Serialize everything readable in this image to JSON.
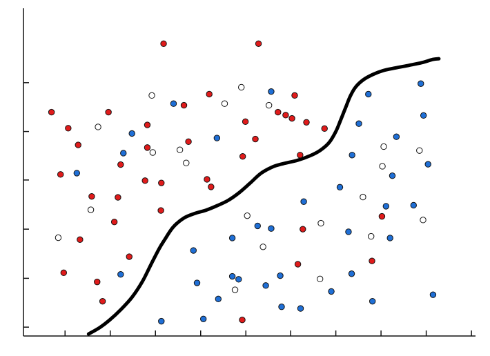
{
  "chart_data": {
    "type": "scatter",
    "title": "",
    "xlabel": "",
    "ylabel": "",
    "xlim": [
      0,
      100
    ],
    "ylim": [
      0,
      100
    ],
    "grid": false,
    "colors": {
      "red": "#e01b1b",
      "blue": "#1f6fd6",
      "open": "#ffffff",
      "outline": "#111111",
      "boundary": "#000000",
      "axis": "#111111"
    },
    "x_ticks": [
      9.2,
      19.2,
      29.2,
      39.2,
      49.2,
      59.1,
      69.1,
      79.1,
      89.1,
      99.1
    ],
    "y_ticks": [
      2.7,
      17.6,
      32.6,
      47.6,
      62.4,
      77.3
    ],
    "series": [
      {
        "marker": "filled-red",
        "color": "#e01b1b",
        "points": [
          [
            31.0,
            89.2
          ],
          [
            52.0,
            89.2
          ],
          [
            6.2,
            68.3
          ],
          [
            18.8,
            68.3
          ],
          [
            41.1,
            73.8
          ],
          [
            60.0,
            73.4
          ],
          [
            35.5,
            70.4
          ],
          [
            59.4,
            66.4
          ],
          [
            62.6,
            65.2
          ],
          [
            9.9,
            63.4
          ],
          [
            27.4,
            64.4
          ],
          [
            49.1,
            65.4
          ],
          [
            58.0,
            67.4
          ],
          [
            56.3,
            68.3
          ],
          [
            66.6,
            63.3
          ],
          [
            12.1,
            58.3
          ],
          [
            27.4,
            57.5
          ],
          [
            36.5,
            59.3
          ],
          [
            51.3,
            60.1
          ],
          [
            48.5,
            54.8
          ],
          [
            61.2,
            55.2
          ],
          [
            21.5,
            52.3
          ],
          [
            8.2,
            49.3
          ],
          [
            26.9,
            47.4
          ],
          [
            30.5,
            46.7
          ],
          [
            40.6,
            47.8
          ],
          [
            15.1,
            42.6
          ],
          [
            20.9,
            42.3
          ],
          [
            41.5,
            45.5
          ],
          [
            30.4,
            38.3
          ],
          [
            20.1,
            34.8
          ],
          [
            12.5,
            29.4
          ],
          [
            61.8,
            32.6
          ],
          [
            79.3,
            36.5
          ],
          [
            23.4,
            24.2
          ],
          [
            8.9,
            19.3
          ],
          [
            16.3,
            16.5
          ],
          [
            60.7,
            21.9
          ],
          [
            77.1,
            22.9
          ],
          [
            17.5,
            10.6
          ],
          [
            48.4,
            4.9
          ]
        ]
      },
      {
        "marker": "filled-blue",
        "color": "#1f6fd6",
        "points": [
          [
            33.2,
            70.9
          ],
          [
            54.8,
            74.6
          ],
          [
            87.9,
            77.0
          ],
          [
            24.0,
            61.8
          ],
          [
            42.8,
            60.4
          ],
          [
            76.3,
            73.8
          ],
          [
            74.2,
            64.8
          ],
          [
            88.5,
            67.3
          ],
          [
            22.1,
            55.8
          ],
          [
            82.5,
            60.8
          ],
          [
            72.7,
            55.2
          ],
          [
            11.8,
            49.7
          ],
          [
            89.5,
            52.4
          ],
          [
            81.6,
            48.9
          ],
          [
            70.0,
            45.4
          ],
          [
            62.0,
            41.0
          ],
          [
            80.2,
            39.6
          ],
          [
            86.3,
            39.9
          ],
          [
            51.8,
            33.6
          ],
          [
            54.8,
            32.8
          ],
          [
            71.9,
            31.8
          ],
          [
            46.2,
            29.9
          ],
          [
            81.1,
            29.9
          ],
          [
            37.6,
            26.1
          ],
          [
            21.5,
            18.8
          ],
          [
            38.4,
            16.2
          ],
          [
            46.2,
            18.2
          ],
          [
            47.6,
            17.3
          ],
          [
            53.6,
            15.4
          ],
          [
            56.8,
            18.4
          ],
          [
            72.6,
            19.0
          ],
          [
            68.1,
            13.6
          ],
          [
            43.1,
            11.3
          ],
          [
            57.1,
            8.9
          ],
          [
            61.3,
            8.4
          ],
          [
            77.2,
            10.6
          ],
          [
            90.6,
            12.6
          ],
          [
            30.5,
            4.5
          ],
          [
            39.8,
            5.2
          ]
        ]
      },
      {
        "marker": "open",
        "color": "#ffffff",
        "points": [
          [
            28.4,
            73.4
          ],
          [
            48.2,
            75.9
          ],
          [
            44.5,
            70.9
          ],
          [
            54.3,
            70.4
          ],
          [
            16.5,
            63.8
          ],
          [
            79.7,
            57.8
          ],
          [
            28.6,
            56.0
          ],
          [
            34.6,
            56.8
          ],
          [
            87.6,
            56.6
          ],
          [
            36.0,
            52.8
          ],
          [
            79.4,
            51.8
          ],
          [
            75.1,
            42.4
          ],
          [
            14.9,
            38.5
          ],
          [
            49.5,
            36.7
          ],
          [
            65.8,
            34.4
          ],
          [
            88.4,
            35.4
          ],
          [
            7.7,
            30.0
          ],
          [
            76.9,
            30.4
          ],
          [
            53.0,
            27.2
          ],
          [
            65.6,
            17.4
          ],
          [
            46.8,
            14.1
          ]
        ]
      }
    ],
    "boundary": {
      "type": "line",
      "points": [
        [
          14.4,
          0.6
        ],
        [
          16.9,
          2.6
        ],
        [
          19.0,
          4.8
        ],
        [
          21.5,
          8.0
        ],
        [
          24.0,
          11.8
        ],
        [
          26.3,
          16.6
        ],
        [
          28.2,
          21.8
        ],
        [
          30.0,
          26.6
        ],
        [
          31.2,
          29.3
        ],
        [
          33.1,
          33.2
        ],
        [
          35.5,
          36.0
        ],
        [
          37.9,
          37.4
        ],
        [
          40.4,
          38.4
        ],
        [
          42.9,
          39.8
        ],
        [
          45.3,
          41.4
        ],
        [
          47.6,
          43.6
        ],
        [
          50.1,
          46.6
        ],
        [
          52.5,
          49.6
        ],
        [
          55.1,
          51.6
        ],
        [
          57.5,
          52.6
        ],
        [
          60.6,
          53.6
        ],
        [
          63.4,
          55.0
        ],
        [
          65.6,
          56.6
        ],
        [
          67.6,
          59.0
        ],
        [
          69.1,
          62.4
        ],
        [
          70.2,
          66.0
        ],
        [
          71.3,
          69.8
        ],
        [
          72.3,
          73.2
        ],
        [
          73.5,
          76.0
        ],
        [
          75.2,
          78.2
        ],
        [
          77.3,
          79.8
        ],
        [
          79.6,
          81.0
        ],
        [
          82.3,
          81.8
        ],
        [
          85.3,
          82.6
        ],
        [
          88.1,
          83.4
        ],
        [
          90.6,
          84.4
        ],
        [
          91.9,
          84.6
        ]
      ]
    }
  }
}
